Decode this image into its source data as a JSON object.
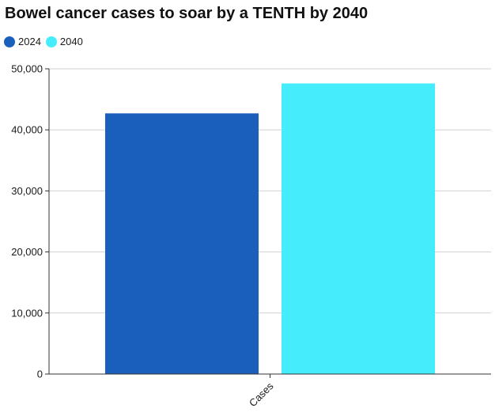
{
  "chart_data": {
    "type": "bar",
    "title": "Bowel cancer cases to soar by a TENTH by 2040",
    "categories": [
      "Cases"
    ],
    "series": [
      {
        "name": "2024",
        "values": [
          42700
        ],
        "color": "#1a5fbb"
      },
      {
        "name": "2040",
        "values": [
          47600
        ],
        "color": "#44ecfc"
      }
    ],
    "ylim": [
      0,
      50000
    ],
    "yticks": [
      0,
      10000,
      20000,
      30000,
      40000,
      50000
    ],
    "ytick_labels": [
      "0",
      "10,000",
      "20,000",
      "30,000",
      "40,000",
      "50,000"
    ],
    "xlabel": "",
    "ylabel": "",
    "grid": true,
    "legend_position": "top-left"
  }
}
